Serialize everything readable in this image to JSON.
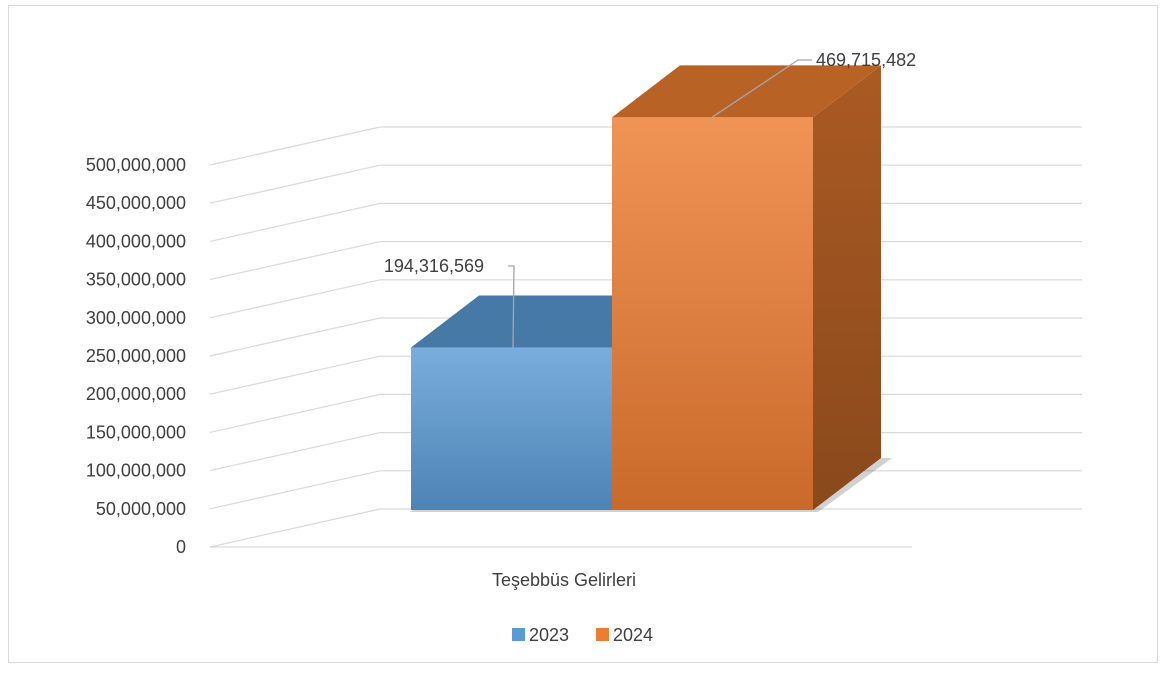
{
  "chart_data": {
    "type": "bar",
    "categories": [
      "Teşebbüs Gelirleri"
    ],
    "series": [
      {
        "name": "2023",
        "values": [
          194316569
        ],
        "label": "194,316,569",
        "color": "#5b9bd5"
      },
      {
        "name": "2024",
        "values": [
          469715482
        ],
        "label": "469,715,482",
        "color": "#ed7d31"
      }
    ],
    "ylim": [
      0,
      500000000
    ],
    "yticks": [
      "0",
      "50,000,000",
      "100,000,000",
      "150,000,000",
      "200,000,000",
      "250,000,000",
      "300,000,000",
      "350,000,000",
      "400,000,000",
      "450,000,000",
      "500,000,000"
    ],
    "ytick_values": [
      0,
      50000000,
      100000000,
      150000000,
      200000000,
      250000000,
      300000000,
      350000000,
      400000000,
      450000000,
      500000000
    ],
    "grid": true,
    "style": "3d-clustered-column",
    "legend_position": "bottom"
  }
}
